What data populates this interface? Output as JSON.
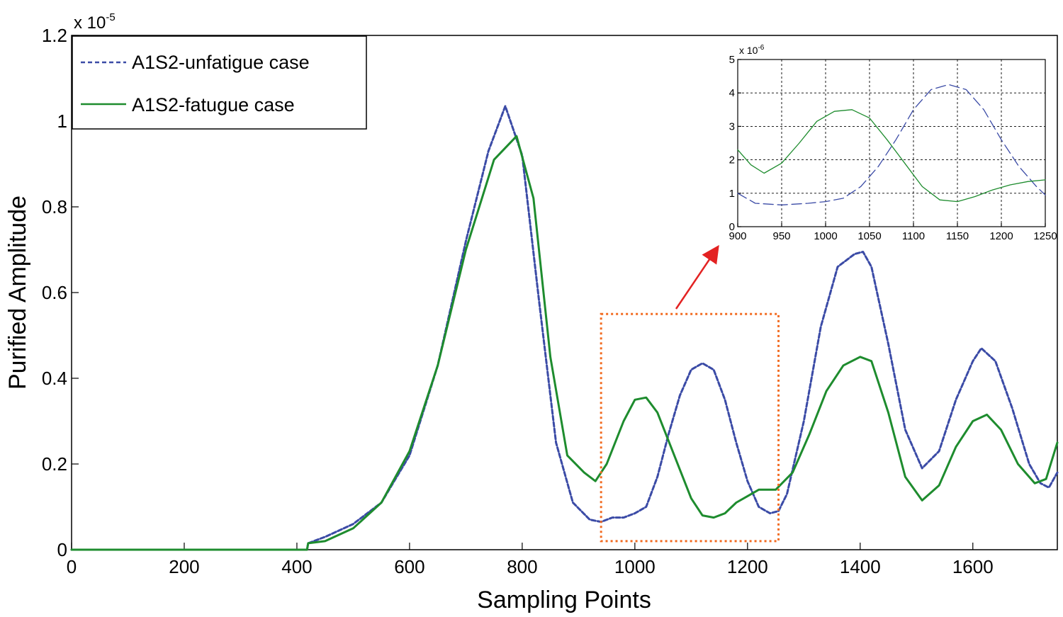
{
  "chart_data": [
    {
      "type": "line",
      "xlabel": "Sampling Points",
      "ylabel": "Purified Amplitude",
      "y_multiplier": "x 10",
      "y_multiplier_exp": "-5",
      "xlim": [
        0,
        1750
      ],
      "ylim": [
        0,
        1.2
      ],
      "xticks": [
        "0",
        "200",
        "400",
        "600",
        "800",
        "1000",
        "1200",
        "1400",
        "1600"
      ],
      "yticks": [
        "0",
        "0.2",
        "0.4",
        "0.6",
        "0.8",
        "1",
        "1.2"
      ],
      "grid": false,
      "legend_position": "top-left",
      "highlight_box": {
        "x_range": [
          940,
          1255
        ],
        "y_range": [
          0.02,
          0.55
        ],
        "color": "#f26b21",
        "style": "dotted"
      },
      "series": [
        {
          "name": "A1S2-unfatigue case",
          "color": "#3b4ba6",
          "style": "dashed",
          "x": [
            0,
            418,
            420,
            450,
            500,
            550,
            600,
            650,
            700,
            740,
            770,
            800,
            830,
            860,
            890,
            920,
            940,
            960,
            980,
            1000,
            1020,
            1040,
            1060,
            1080,
            1100,
            1120,
            1140,
            1160,
            1180,
            1200,
            1220,
            1240,
            1255,
            1270,
            1300,
            1330,
            1360,
            1390,
            1405,
            1420,
            1450,
            1480,
            1510,
            1540,
            1570,
            1600,
            1615,
            1640,
            1670,
            1700,
            1720,
            1735,
            1750
          ],
          "y": [
            0,
            0,
            0.015,
            0.03,
            0.06,
            0.11,
            0.22,
            0.43,
            0.72,
            0.93,
            1.035,
            0.92,
            0.58,
            0.25,
            0.11,
            0.07,
            0.065,
            0.075,
            0.075,
            0.085,
            0.1,
            0.17,
            0.27,
            0.36,
            0.42,
            0.435,
            0.42,
            0.35,
            0.25,
            0.16,
            0.1,
            0.085,
            0.09,
            0.13,
            0.3,
            0.52,
            0.66,
            0.69,
            0.695,
            0.66,
            0.48,
            0.28,
            0.19,
            0.23,
            0.35,
            0.44,
            0.47,
            0.44,
            0.33,
            0.2,
            0.155,
            0.145,
            0.18
          ]
        },
        {
          "name": "A1S2-fatugue case",
          "color": "#1e8c2e",
          "style": "solid",
          "x": [
            0,
            418,
            420,
            450,
            500,
            550,
            600,
            650,
            700,
            750,
            790,
            820,
            850,
            880,
            910,
            930,
            950,
            980,
            1000,
            1020,
            1040,
            1070,
            1100,
            1120,
            1140,
            1160,
            1180,
            1200,
            1220,
            1250,
            1280,
            1310,
            1340,
            1370,
            1400,
            1420,
            1450,
            1480,
            1510,
            1540,
            1570,
            1600,
            1625,
            1650,
            1680,
            1710,
            1730,
            1750
          ],
          "y": [
            0,
            0,
            0.015,
            0.02,
            0.05,
            0.11,
            0.23,
            0.43,
            0.7,
            0.91,
            0.965,
            0.82,
            0.45,
            0.22,
            0.18,
            0.16,
            0.2,
            0.3,
            0.35,
            0.355,
            0.32,
            0.22,
            0.12,
            0.08,
            0.075,
            0.085,
            0.11,
            0.125,
            0.14,
            0.14,
            0.18,
            0.27,
            0.37,
            0.43,
            0.45,
            0.44,
            0.32,
            0.17,
            0.115,
            0.15,
            0.24,
            0.3,
            0.315,
            0.28,
            0.2,
            0.155,
            0.165,
            0.25
          ]
        }
      ]
    },
    {
      "type": "line",
      "role": "inset",
      "xlim": [
        900,
        1250
      ],
      "ylim": [
        0,
        5
      ],
      "y_multiplier": "x 10",
      "y_multiplier_exp": "-6",
      "xticks": [
        "900",
        "950",
        "1000",
        "1050",
        "1100",
        "1150",
        "1200",
        "1250"
      ],
      "yticks": [
        "0",
        "1",
        "2",
        "3",
        "4",
        "5"
      ],
      "grid": true,
      "series": [
        {
          "name": "A1S2-unfatigue case",
          "color": "#3b4ba6",
          "style": "dashed",
          "x": [
            900,
            920,
            950,
            980,
            1000,
            1020,
            1040,
            1060,
            1080,
            1100,
            1120,
            1140,
            1160,
            1180,
            1200,
            1220,
            1240,
            1250
          ],
          "y": [
            1.0,
            0.7,
            0.65,
            0.7,
            0.75,
            0.85,
            1.2,
            1.8,
            2.6,
            3.5,
            4.1,
            4.25,
            4.1,
            3.5,
            2.6,
            1.8,
            1.2,
            0.95
          ]
        },
        {
          "name": "A1S2-fatugue case",
          "color": "#1e8c2e",
          "style": "solid",
          "x": [
            900,
            915,
            930,
            950,
            970,
            990,
            1010,
            1030,
            1050,
            1070,
            1090,
            1110,
            1130,
            1150,
            1170,
            1190,
            1210,
            1230,
            1250
          ],
          "y": [
            2.3,
            1.85,
            1.6,
            1.9,
            2.5,
            3.15,
            3.45,
            3.5,
            3.25,
            2.6,
            1.9,
            1.2,
            0.8,
            0.75,
            0.9,
            1.1,
            1.25,
            1.35,
            1.4
          ]
        }
      ]
    }
  ]
}
